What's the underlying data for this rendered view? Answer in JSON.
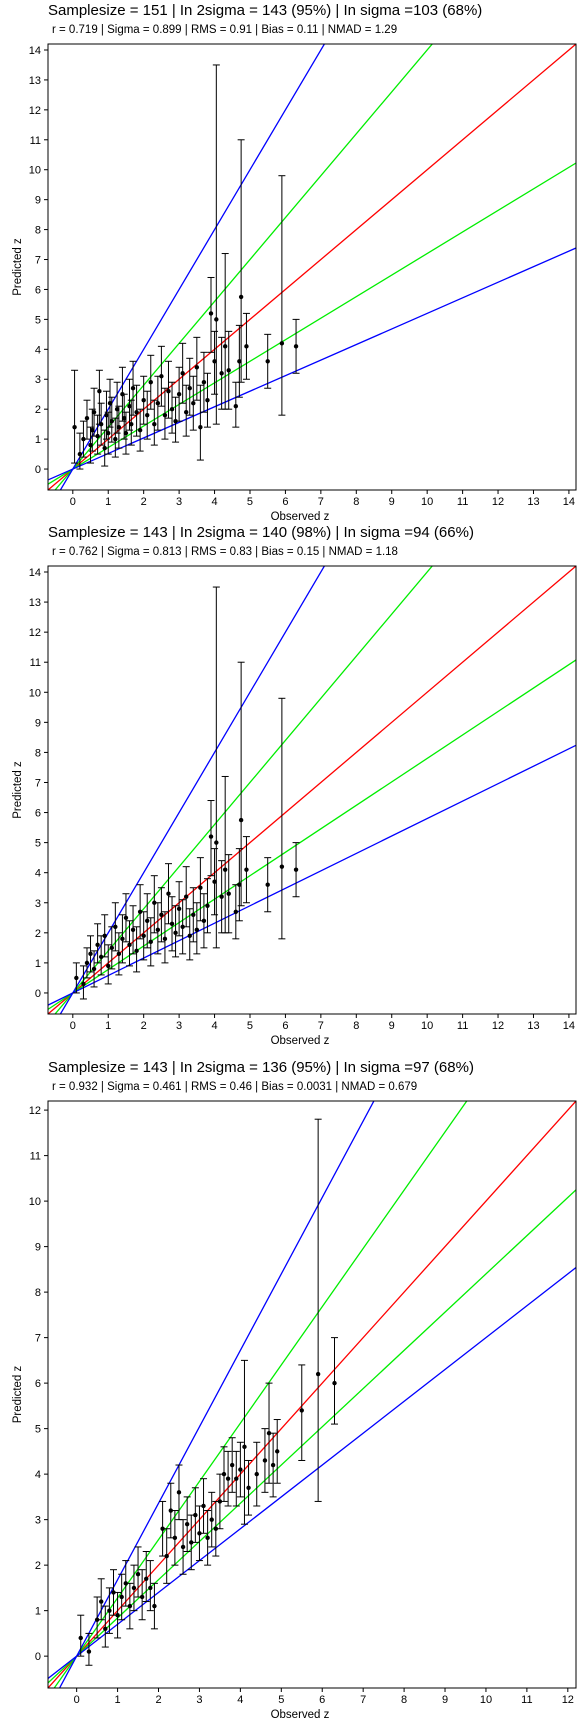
{
  "chart_data": [
    {
      "type": "scatter",
      "title": "Samplesize = 151 | In 2sigma = 143 (95%) | In sigma =103 (68%)",
      "subtitle": "r =  0.719  | Sigma =  0.899  | RMS =  0.91  | Bias =  0.11  | NMAD =  1.29",
      "xlabel": "Observed z",
      "ylabel": "Predicted z",
      "xlim": [
        -0.7,
        14.2
      ],
      "ylim": [
        -0.7,
        14.2
      ],
      "xticks": [
        0,
        1,
        2,
        3,
        4,
        5,
        6,
        7,
        8,
        9,
        10,
        11,
        12,
        13,
        14
      ],
      "yticks": [
        0,
        1,
        2,
        3,
        4,
        5,
        6,
        7,
        8,
        9,
        10,
        11,
        12,
        13,
        14
      ],
      "grid": false,
      "reference_lines": [
        {
          "slope": 1.0,
          "color": "#ff0000"
        },
        {
          "slope": 1.4,
          "color": "#00ee00"
        },
        {
          "slope": 0.72,
          "color": "#00ee00"
        },
        {
          "slope": 2.0,
          "color": "#0000ff"
        },
        {
          "slope": 0.52,
          "color": "#0000ff"
        }
      ],
      "points": [
        {
          "x": 0.05,
          "y": 1.4,
          "lo": 0.2,
          "hi": 3.3
        },
        {
          "x": 0.2,
          "y": 0.5,
          "lo": 0.0,
          "hi": 1.2
        },
        {
          "x": 0.3,
          "y": 1.0,
          "lo": 0.4,
          "hi": 1.6
        },
        {
          "x": 0.4,
          "y": 1.7,
          "lo": 1.0,
          "hi": 2.3
        },
        {
          "x": 0.5,
          "y": 0.8,
          "lo": 0.2,
          "hi": 1.4
        },
        {
          "x": 0.55,
          "y": 1.3,
          "lo": 0.6,
          "hi": 2.0
        },
        {
          "x": 0.6,
          "y": 1.9,
          "lo": 1.1,
          "hi": 2.7
        },
        {
          "x": 0.7,
          "y": 1.1,
          "lo": 0.5,
          "hi": 1.8
        },
        {
          "x": 0.75,
          "y": 2.6,
          "lo": 1.5,
          "hi": 3.3
        },
        {
          "x": 0.8,
          "y": 1.5,
          "lo": 0.8,
          "hi": 2.2
        },
        {
          "x": 0.9,
          "y": 0.7,
          "lo": 0.1,
          "hi": 1.3
        },
        {
          "x": 0.95,
          "y": 1.8,
          "lo": 1.0,
          "hi": 2.6
        },
        {
          "x": 1.0,
          "y": 1.2,
          "lo": 0.5,
          "hi": 1.9
        },
        {
          "x": 1.05,
          "y": 2.2,
          "lo": 1.4,
          "hi": 3.0
        },
        {
          "x": 1.1,
          "y": 1.6,
          "lo": 0.9,
          "hi": 2.4
        },
        {
          "x": 1.2,
          "y": 1.0,
          "lo": 0.4,
          "hi": 1.7
        },
        {
          "x": 1.25,
          "y": 2.0,
          "lo": 1.2,
          "hi": 2.9
        },
        {
          "x": 1.3,
          "y": 1.4,
          "lo": 0.7,
          "hi": 2.1
        },
        {
          "x": 1.4,
          "y": 2.5,
          "lo": 1.6,
          "hi": 3.4
        },
        {
          "x": 1.45,
          "y": 1.7,
          "lo": 1.0,
          "hi": 2.5
        },
        {
          "x": 1.5,
          "y": 1.2,
          "lo": 0.5,
          "hi": 1.9
        },
        {
          "x": 1.6,
          "y": 2.1,
          "lo": 1.3,
          "hi": 3.0
        },
        {
          "x": 1.65,
          "y": 1.5,
          "lo": 0.8,
          "hi": 2.3
        },
        {
          "x": 1.7,
          "y": 2.7,
          "lo": 1.8,
          "hi": 3.6
        },
        {
          "x": 1.8,
          "y": 1.9,
          "lo": 1.1,
          "hi": 2.8
        },
        {
          "x": 1.9,
          "y": 1.3,
          "lo": 0.6,
          "hi": 2.0
        },
        {
          "x": 2.0,
          "y": 2.3,
          "lo": 1.5,
          "hi": 3.1
        },
        {
          "x": 2.1,
          "y": 1.8,
          "lo": 1.0,
          "hi": 2.6
        },
        {
          "x": 2.2,
          "y": 2.9,
          "lo": 2.0,
          "hi": 3.8
        },
        {
          "x": 2.3,
          "y": 1.5,
          "lo": 0.8,
          "hi": 2.3
        },
        {
          "x": 2.4,
          "y": 2.2,
          "lo": 1.3,
          "hi": 3.1
        },
        {
          "x": 2.5,
          "y": 3.1,
          "lo": 2.1,
          "hi": 4.1
        },
        {
          "x": 2.6,
          "y": 1.8,
          "lo": 1.0,
          "hi": 2.7
        },
        {
          "x": 2.7,
          "y": 2.6,
          "lo": 1.7,
          "hi": 3.6
        },
        {
          "x": 2.8,
          "y": 2.0,
          "lo": 1.2,
          "hi": 2.9
        },
        {
          "x": 2.9,
          "y": 1.6,
          "lo": 0.9,
          "hi": 2.4
        },
        {
          "x": 3.0,
          "y": 2.5,
          "lo": 1.6,
          "hi": 3.4
        },
        {
          "x": 3.1,
          "y": 3.2,
          "lo": 2.2,
          "hi": 4.2
        },
        {
          "x": 3.2,
          "y": 1.9,
          "lo": 1.1,
          "hi": 2.8
        },
        {
          "x": 3.3,
          "y": 2.7,
          "lo": 1.8,
          "hi": 3.7
        },
        {
          "x": 3.4,
          "y": 2.2,
          "lo": 1.3,
          "hi": 3.1
        },
        {
          "x": 3.5,
          "y": 3.4,
          "lo": 2.3,
          "hi": 4.4
        },
        {
          "x": 3.6,
          "y": 1.4,
          "lo": 0.3,
          "hi": 2.8
        },
        {
          "x": 3.7,
          "y": 2.9,
          "lo": 1.9,
          "hi": 3.9
        },
        {
          "x": 3.8,
          "y": 2.3,
          "lo": 1.4,
          "hi": 3.2
        },
        {
          "x": 3.9,
          "y": 5.2,
          "lo": 3.9,
          "hi": 6.4
        },
        {
          "x": 4.0,
          "y": 3.6,
          "lo": 2.5,
          "hi": 4.6
        },
        {
          "x": 4.05,
          "y": 5.0,
          "lo": 1.5,
          "hi": 13.5
        },
        {
          "x": 4.2,
          "y": 3.2,
          "lo": 2.0,
          "hi": 4.4
        },
        {
          "x": 4.3,
          "y": 4.1,
          "lo": 2.0,
          "hi": 7.2
        },
        {
          "x": 4.4,
          "y": 3.3,
          "lo": 2.0,
          "hi": 4.6
        },
        {
          "x": 4.6,
          "y": 2.1,
          "lo": 1.4,
          "hi": 2.9
        },
        {
          "x": 4.7,
          "y": 3.6,
          "lo": 2.4,
          "hi": 4.8
        },
        {
          "x": 4.75,
          "y": 5.75,
          "lo": 2.9,
          "hi": 11.0
        },
        {
          "x": 4.9,
          "y": 4.1,
          "lo": 3.0,
          "hi": 5.2
        },
        {
          "x": 5.5,
          "y": 3.6,
          "lo": 2.7,
          "hi": 4.5
        },
        {
          "x": 5.9,
          "y": 4.2,
          "lo": 1.8,
          "hi": 9.8
        },
        {
          "x": 6.3,
          "y": 4.1,
          "lo": 3.2,
          "hi": 5.0
        }
      ]
    },
    {
      "type": "scatter",
      "title": "Samplesize = 143 | In 2sigma = 140 (98%) | In sigma =94 (66%)",
      "subtitle": "r =  0.762  | Sigma =  0.813  | RMS =  0.83  | Bias =  0.15  | NMAD =  1.18",
      "xlabel": "Observed z",
      "ylabel": "Predicted z",
      "xlim": [
        -0.7,
        14.2
      ],
      "ylim": [
        -0.7,
        14.2
      ],
      "xticks": [
        0,
        1,
        2,
        3,
        4,
        5,
        6,
        7,
        8,
        9,
        10,
        11,
        12,
        13,
        14
      ],
      "yticks": [
        0,
        1,
        2,
        3,
        4,
        5,
        6,
        7,
        8,
        9,
        10,
        11,
        12,
        13,
        14
      ],
      "grid": false,
      "reference_lines": [
        {
          "slope": 1.0,
          "color": "#ff0000"
        },
        {
          "slope": 1.4,
          "color": "#00ee00"
        },
        {
          "slope": 0.78,
          "color": "#00ee00"
        },
        {
          "slope": 2.0,
          "color": "#0000ff"
        },
        {
          "slope": 0.58,
          "color": "#0000ff"
        }
      ],
      "points": [
        {
          "x": 0.1,
          "y": 0.5,
          "lo": 0.0,
          "hi": 1.0
        },
        {
          "x": 0.3,
          "y": 0.3,
          "lo": -0.2,
          "hi": 0.9
        },
        {
          "x": 0.4,
          "y": 1.0,
          "lo": 0.5,
          "hi": 1.5
        },
        {
          "x": 0.5,
          "y": 1.3,
          "lo": 0.7,
          "hi": 1.9
        },
        {
          "x": 0.6,
          "y": 0.8,
          "lo": 0.2,
          "hi": 1.4
        },
        {
          "x": 0.7,
          "y": 1.6,
          "lo": 1.0,
          "hi": 2.3
        },
        {
          "x": 0.8,
          "y": 1.2,
          "lo": 0.6,
          "hi": 1.9
        },
        {
          "x": 0.9,
          "y": 1.9,
          "lo": 1.2,
          "hi": 2.6
        },
        {
          "x": 1.0,
          "y": 0.9,
          "lo": 0.3,
          "hi": 1.6
        },
        {
          "x": 1.1,
          "y": 1.5,
          "lo": 0.8,
          "hi": 2.2
        },
        {
          "x": 1.2,
          "y": 2.2,
          "lo": 1.4,
          "hi": 3.0
        },
        {
          "x": 1.3,
          "y": 1.3,
          "lo": 0.6,
          "hi": 2.0
        },
        {
          "x": 1.4,
          "y": 1.8,
          "lo": 1.0,
          "hi": 2.6
        },
        {
          "x": 1.5,
          "y": 2.5,
          "lo": 1.7,
          "hi": 3.3
        },
        {
          "x": 1.6,
          "y": 1.6,
          "lo": 0.9,
          "hi": 2.4
        },
        {
          "x": 1.7,
          "y": 2.1,
          "lo": 1.3,
          "hi": 2.9
        },
        {
          "x": 1.8,
          "y": 1.4,
          "lo": 0.7,
          "hi": 2.2
        },
        {
          "x": 1.9,
          "y": 2.7,
          "lo": 1.8,
          "hi": 3.6
        },
        {
          "x": 2.0,
          "y": 1.9,
          "lo": 1.1,
          "hi": 2.7
        },
        {
          "x": 2.1,
          "y": 2.4,
          "lo": 1.5,
          "hi": 3.3
        },
        {
          "x": 2.2,
          "y": 1.7,
          "lo": 0.9,
          "hi": 2.5
        },
        {
          "x": 2.3,
          "y": 3.0,
          "lo": 2.0,
          "hi": 3.9
        },
        {
          "x": 2.4,
          "y": 2.1,
          "lo": 1.3,
          "hi": 3.0
        },
        {
          "x": 2.5,
          "y": 2.6,
          "lo": 1.7,
          "hi": 3.5
        },
        {
          "x": 2.6,
          "y": 1.8,
          "lo": 1.0,
          "hi": 2.7
        },
        {
          "x": 2.7,
          "y": 3.3,
          "lo": 2.3,
          "hi": 4.3
        },
        {
          "x": 2.8,
          "y": 2.3,
          "lo": 1.4,
          "hi": 3.2
        },
        {
          "x": 2.9,
          "y": 2.0,
          "lo": 1.2,
          "hi": 2.9
        },
        {
          "x": 3.0,
          "y": 2.8,
          "lo": 1.9,
          "hi": 3.7
        },
        {
          "x": 3.1,
          "y": 2.2,
          "lo": 1.3,
          "hi": 3.1
        },
        {
          "x": 3.2,
          "y": 3.2,
          "lo": 2.2,
          "hi": 4.2
        },
        {
          "x": 3.3,
          "y": 1.9,
          "lo": 1.1,
          "hi": 2.8
        },
        {
          "x": 3.4,
          "y": 2.6,
          "lo": 1.7,
          "hi": 3.5
        },
        {
          "x": 3.5,
          "y": 2.1,
          "lo": 1.3,
          "hi": 3.0
        },
        {
          "x": 3.6,
          "y": 3.5,
          "lo": 2.4,
          "hi": 4.5
        },
        {
          "x": 3.7,
          "y": 2.4,
          "lo": 1.5,
          "hi": 3.3
        },
        {
          "x": 3.8,
          "y": 2.9,
          "lo": 2.0,
          "hi": 3.8
        },
        {
          "x": 3.9,
          "y": 5.2,
          "lo": 3.9,
          "hi": 6.4
        },
        {
          "x": 4.0,
          "y": 3.7,
          "lo": 2.6,
          "hi": 4.8
        },
        {
          "x": 4.05,
          "y": 5.0,
          "lo": 1.5,
          "hi": 13.5
        },
        {
          "x": 4.2,
          "y": 3.2,
          "lo": 2.0,
          "hi": 4.4
        },
        {
          "x": 4.3,
          "y": 4.1,
          "lo": 2.0,
          "hi": 7.2
        },
        {
          "x": 4.4,
          "y": 3.3,
          "lo": 2.0,
          "hi": 4.6
        },
        {
          "x": 4.6,
          "y": 2.7,
          "lo": 1.8,
          "hi": 3.6
        },
        {
          "x": 4.7,
          "y": 3.6,
          "lo": 2.4,
          "hi": 4.8
        },
        {
          "x": 4.75,
          "y": 5.75,
          "lo": 2.9,
          "hi": 11.0
        },
        {
          "x": 4.9,
          "y": 4.1,
          "lo": 3.0,
          "hi": 5.2
        },
        {
          "x": 5.5,
          "y": 3.6,
          "lo": 2.7,
          "hi": 4.5
        },
        {
          "x": 5.9,
          "y": 4.2,
          "lo": 1.8,
          "hi": 9.8
        },
        {
          "x": 6.3,
          "y": 4.1,
          "lo": 3.2,
          "hi": 5.0
        }
      ]
    },
    {
      "type": "scatter",
      "title": "Samplesize = 143 | In 2sigma = 136 (95%) | In sigma =97 (68%)",
      "subtitle": "r =  0.932  | Sigma =  0.461  | RMS =  0.46  | Bias =  0.0031  | NMAD =  0.679",
      "xlabel": "Observed z",
      "ylabel": "Predicted z",
      "xlim": [
        -0.7,
        12.2
      ],
      "ylim": [
        -0.7,
        12.2
      ],
      "xticks": [
        0,
        1,
        2,
        3,
        4,
        5,
        6,
        7,
        8,
        9,
        10,
        11,
        12
      ],
      "yticks": [
        0,
        1,
        2,
        3,
        4,
        5,
        6,
        7,
        8,
        9,
        10,
        11,
        12
      ],
      "grid": false,
      "reference_lines": [
        {
          "slope": 1.0,
          "color": "#ff0000"
        },
        {
          "slope": 1.28,
          "color": "#00ee00"
        },
        {
          "slope": 0.84,
          "color": "#00ee00"
        },
        {
          "slope": 1.68,
          "color": "#0000ff"
        },
        {
          "slope": 0.7,
          "color": "#0000ff"
        }
      ],
      "points": [
        {
          "x": 0.1,
          "y": 0.4,
          "lo": 0.0,
          "hi": 0.9
        },
        {
          "x": 0.3,
          "y": 0.1,
          "lo": -0.2,
          "hi": 0.5
        },
        {
          "x": 0.5,
          "y": 0.8,
          "lo": 0.4,
          "hi": 1.3
        },
        {
          "x": 0.6,
          "y": 1.2,
          "lo": 0.8,
          "hi": 1.7
        },
        {
          "x": 0.7,
          "y": 0.6,
          "lo": 0.2,
          "hi": 1.1
        },
        {
          "x": 0.8,
          "y": 1.0,
          "lo": 0.5,
          "hi": 1.5
        },
        {
          "x": 0.9,
          "y": 1.4,
          "lo": 0.9,
          "hi": 1.9
        },
        {
          "x": 1.0,
          "y": 0.9,
          "lo": 0.4,
          "hi": 1.4
        },
        {
          "x": 1.1,
          "y": 1.3,
          "lo": 0.8,
          "hi": 1.8
        },
        {
          "x": 1.2,
          "y": 1.6,
          "lo": 1.1,
          "hi": 2.1
        },
        {
          "x": 1.3,
          "y": 1.1,
          "lo": 0.6,
          "hi": 1.6
        },
        {
          "x": 1.4,
          "y": 1.5,
          "lo": 1.0,
          "hi": 2.0
        },
        {
          "x": 1.5,
          "y": 1.8,
          "lo": 1.3,
          "hi": 2.4
        },
        {
          "x": 1.6,
          "y": 1.3,
          "lo": 0.8,
          "hi": 1.9
        },
        {
          "x": 1.7,
          "y": 1.7,
          "lo": 1.2,
          "hi": 2.3
        },
        {
          "x": 1.8,
          "y": 1.5,
          "lo": 1.0,
          "hi": 2.1
        },
        {
          "x": 1.9,
          "y": 1.1,
          "lo": 0.6,
          "hi": 1.6
        },
        {
          "x": 2.1,
          "y": 2.8,
          "lo": 2.2,
          "hi": 3.4
        },
        {
          "x": 2.2,
          "y": 2.2,
          "lo": 1.6,
          "hi": 2.8
        },
        {
          "x": 2.3,
          "y": 3.2,
          "lo": 2.6,
          "hi": 3.8
        },
        {
          "x": 2.4,
          "y": 2.6,
          "lo": 2.0,
          "hi": 3.2
        },
        {
          "x": 2.5,
          "y": 3.6,
          "lo": 3.0,
          "hi": 4.2
        },
        {
          "x": 2.6,
          "y": 2.4,
          "lo": 1.8,
          "hi": 3.0
        },
        {
          "x": 2.7,
          "y": 2.9,
          "lo": 2.3,
          "hi": 3.5
        },
        {
          "x": 2.8,
          "y": 2.5,
          "lo": 1.9,
          "hi": 3.1
        },
        {
          "x": 2.9,
          "y": 3.1,
          "lo": 2.5,
          "hi": 3.7
        },
        {
          "x": 3.0,
          "y": 2.7,
          "lo": 2.1,
          "hi": 3.3
        },
        {
          "x": 3.1,
          "y": 3.3,
          "lo": 2.7,
          "hi": 3.9
        },
        {
          "x": 3.2,
          "y": 2.6,
          "lo": 2.0,
          "hi": 3.2
        },
        {
          "x": 3.3,
          "y": 3.0,
          "lo": 2.4,
          "hi": 3.6
        },
        {
          "x": 3.4,
          "y": 2.8,
          "lo": 2.2,
          "hi": 3.4
        },
        {
          "x": 3.5,
          "y": 3.4,
          "lo": 2.8,
          "hi": 4.0
        },
        {
          "x": 3.6,
          "y": 4.0,
          "lo": 3.4,
          "hi": 4.6
        },
        {
          "x": 3.7,
          "y": 3.9,
          "lo": 3.3,
          "hi": 4.5
        },
        {
          "x": 3.8,
          "y": 4.2,
          "lo": 3.6,
          "hi": 4.8
        },
        {
          "x": 3.9,
          "y": 3.9,
          "lo": 3.3,
          "hi": 4.5
        },
        {
          "x": 4.0,
          "y": 4.1,
          "lo": 3.5,
          "hi": 4.7
        },
        {
          "x": 4.1,
          "y": 4.6,
          "lo": 2.9,
          "hi": 6.5
        },
        {
          "x": 4.2,
          "y": 3.7,
          "lo": 3.1,
          "hi": 4.3
        },
        {
          "x": 4.4,
          "y": 4.0,
          "lo": 3.3,
          "hi": 4.7
        },
        {
          "x": 4.6,
          "y": 4.3,
          "lo": 3.6,
          "hi": 5.0
        },
        {
          "x": 4.7,
          "y": 4.9,
          "lo": 3.8,
          "hi": 6.0
        },
        {
          "x": 4.8,
          "y": 4.2,
          "lo": 3.5,
          "hi": 4.9
        },
        {
          "x": 4.9,
          "y": 4.5,
          "lo": 3.8,
          "hi": 5.2
        },
        {
          "x": 5.5,
          "y": 5.4,
          "lo": 4.3,
          "hi": 6.4
        },
        {
          "x": 5.9,
          "y": 6.2,
          "lo": 3.4,
          "hi": 11.8
        },
        {
          "x": 6.3,
          "y": 6.0,
          "lo": 5.1,
          "hi": 7.0
        }
      ]
    }
  ]
}
